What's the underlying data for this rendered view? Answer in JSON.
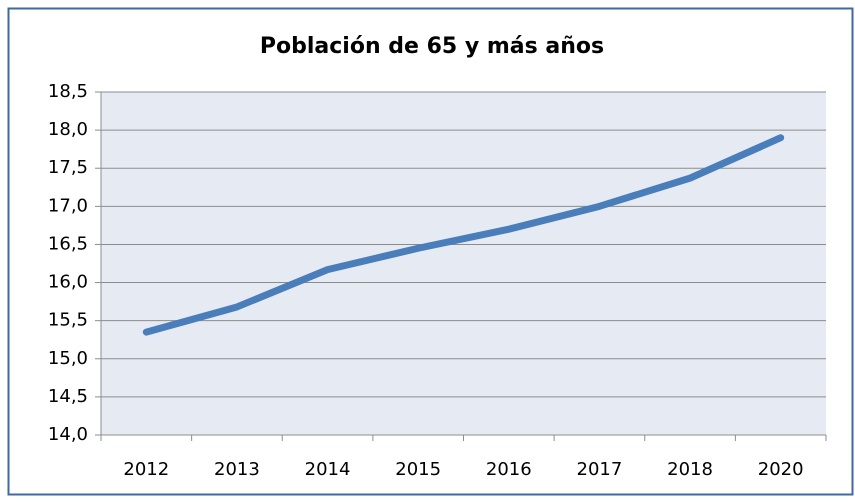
{
  "chart_data": {
    "type": "line",
    "title": "Población de 65 y más años",
    "categories": [
      "2012",
      "2013",
      "2014",
      "2015",
      "2016",
      "2017",
      "2018",
      "2020"
    ],
    "series": [
      {
        "name": "Población de 65 y más años",
        "color": "#4a7ebb",
        "values": [
          15.35,
          15.68,
          16.17,
          16.45,
          16.7,
          17.0,
          17.37,
          17.9
        ]
      }
    ],
    "ylim": [
      14.0,
      18.5
    ],
    "yticks": [
      {
        "value": 14.0,
        "label": "14,0"
      },
      {
        "value": 14.5,
        "label": "14,5"
      },
      {
        "value": 15.0,
        "label": "15,0"
      },
      {
        "value": 15.5,
        "label": "15,5"
      },
      {
        "value": 16.0,
        "label": "16,0"
      },
      {
        "value": 16.5,
        "label": "16,5"
      },
      {
        "value": 17.0,
        "label": "17,0"
      },
      {
        "value": 17.5,
        "label": "17,5"
      },
      {
        "value": 18.0,
        "label": "18,0"
      },
      {
        "value": 18.5,
        "label": "18,5"
      }
    ],
    "grid": true
  }
}
